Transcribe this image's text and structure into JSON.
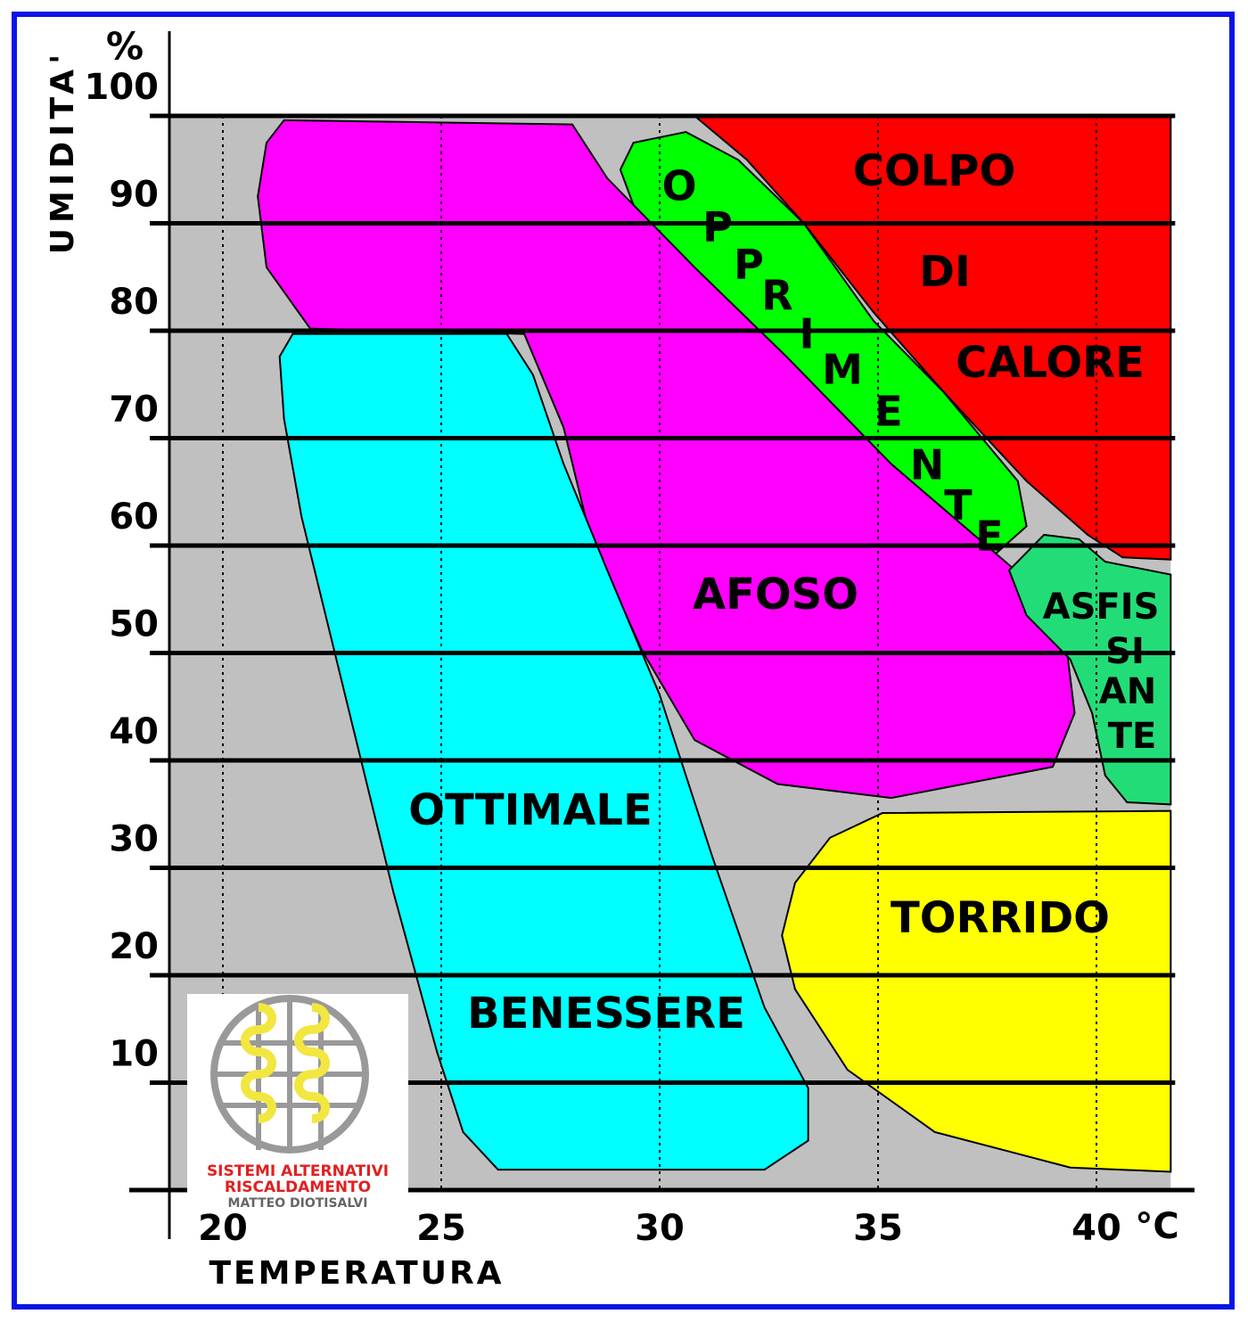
{
  "chart_data": {
    "type": "region",
    "ylabel": "UMIDITA'",
    "yunit": "%",
    "xlabel": "TEMPERATURA",
    "xunit": "°C",
    "xlim": [
      18.8,
      41.7
    ],
    "ylim": [
      0,
      100
    ],
    "xticks": [
      20,
      25,
      30,
      35,
      40
    ],
    "yticks": [
      10,
      20,
      30,
      40,
      50,
      60,
      70,
      80,
      90,
      100
    ],
    "grid": true,
    "regions": [
      {
        "label": [
          "COLPO",
          "DI",
          "CALORE"
        ],
        "color": "#ff0000",
        "x": [
          30.8,
          41.7,
          41.7,
          40.6,
          39.8,
          38.4,
          36.5,
          34.9,
          33.3,
          32.0
        ],
        "y": [
          100,
          100,
          58.7,
          58.9,
          61.0,
          66.0,
          74.3,
          81.7,
          90.0,
          95.9
        ]
      },
      {
        "label": [
          "O",
          "P",
          "P",
          "R",
          "I",
          "M",
          "E",
          "N",
          "T",
          "E"
        ],
        "color": "#00ff00",
        "x": [
          29.4,
          30.6,
          31.8,
          33.3,
          34.9,
          36.5,
          38.2,
          38.4,
          37.6,
          36.7,
          35.3,
          33.3,
          31.6,
          30.4,
          29.4,
          29.1
        ],
        "y": [
          97.5,
          98.5,
          95.9,
          90.0,
          80.9,
          74.3,
          66.0,
          61.8,
          58.9,
          59.3,
          63.5,
          71.8,
          79.3,
          85.9,
          91.7,
          95.0
        ]
      },
      {
        "label": [
          "AFOSO"
        ],
        "color": "#ff00ff",
        "x": [
          21.4,
          28.0,
          28.8,
          30.8,
          32.9,
          35.3,
          38.4,
          39.3,
          39.5,
          39.0,
          35.3,
          32.7,
          30.8,
          29.6,
          28.4,
          27.8,
          26.9,
          22.0,
          21.0,
          20.8,
          21.0
        ],
        "y": [
          99.6,
          99.2,
          94.2,
          85.9,
          77.6,
          67.6,
          56.8,
          51.0,
          44.4,
          39.4,
          36.5,
          37.8,
          41.9,
          50.2,
          61.0,
          71.0,
          79.7,
          80.2,
          85.9,
          92.5,
          97.5
        ]
      },
      {
        "label": [
          "ASFIS",
          "SI",
          "AN",
          "TE"
        ],
        "color": "#22dd77",
        "x": [
          38.0,
          38.8,
          39.6,
          40.2,
          41.7,
          41.7,
          40.7,
          40.2,
          39.9,
          39.4,
          38.4
        ],
        "y": [
          57.7,
          61.0,
          60.6,
          58.5,
          57.3,
          35.9,
          36.1,
          38.6,
          44.4,
          49.4,
          53.5
        ]
      },
      {
        "label": [
          "OTTIMALE",
          "BENESSERE"
        ],
        "color": "#00ffff",
        "x": [
          21.6,
          26.5,
          27.1,
          27.8,
          28.8,
          30.0,
          31.2,
          32.4,
          33.4,
          33.4,
          32.4,
          26.3,
          25.5,
          24.9,
          23.9,
          22.9,
          21.8,
          21.4,
          21.3
        ],
        "y": [
          79.7,
          79.7,
          75.9,
          67.6,
          57.7,
          46.1,
          31.1,
          17.0,
          9.5,
          4.6,
          1.9,
          1.9,
          5.4,
          12.9,
          27.8,
          44.4,
          62.7,
          71.8,
          77.6
        ]
      },
      {
        "label": [
          "TORRIDO"
        ],
        "color": "#ffff00",
        "x": [
          35.1,
          41.7,
          41.7,
          39.4,
          36.3,
          34.3,
          33.1,
          32.8,
          33.1,
          33.9
        ],
        "y": [
          35.1,
          35.3,
          1.7,
          2.1,
          5.4,
          11.2,
          18.7,
          23.7,
          28.6,
          32.8
        ]
      }
    ]
  },
  "logo": {
    "line1": "SISTEMI  ALTERNATIVI",
    "line2": "RISCALDAMENTO",
    "line3": "MATTEO DIOTISALVI"
  }
}
